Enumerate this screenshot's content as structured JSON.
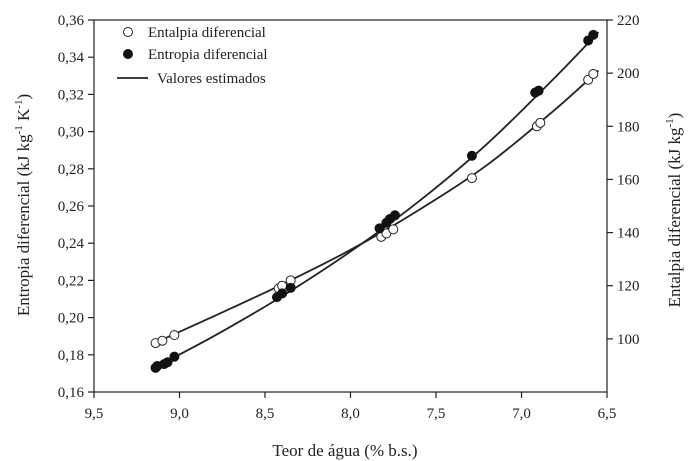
{
  "chart_data": {
    "type": "line",
    "xlabel": "Teor de água (% b.s.)",
    "ylabel_left_main": "Entropia diferencial (kJ kg",
    "ylabel_left_sup1": "-1",
    "ylabel_left_mid": " K",
    "ylabel_left_sup2": "-1",
    "ylabel_left_end": ")",
    "ylabel_right_main": "Entalpia diferencial (kJ kg",
    "ylabel_right_sup": "-1",
    "ylabel_right_end": ")",
    "xlim": [
      9.5,
      6.5
    ],
    "x_reversed": true,
    "ylim_left": [
      0.16,
      0.36
    ],
    "ylim_right": [
      80,
      220
    ],
    "x_ticks": [
      9.5,
      9.0,
      8.5,
      8.0,
      7.5,
      7.0,
      6.5
    ],
    "x_tick_labels": [
      "9,5",
      "9,0",
      "8,5",
      "8,0",
      "7,5",
      "7,0",
      "6,5"
    ],
    "y_left_ticks": [
      0.16,
      0.18,
      0.2,
      0.22,
      0.24,
      0.26,
      0.28,
      0.3,
      0.32,
      0.34,
      0.36
    ],
    "y_left_tick_labels": [
      "0,16",
      "0,18",
      "0,20",
      "0,22",
      "0,24",
      "0,26",
      "0,28",
      "0,30",
      "0,32",
      "0,34",
      "0,36"
    ],
    "y_right_ticks": [
      100,
      120,
      140,
      160,
      180,
      200,
      220
    ],
    "y_right_tick_labels": [
      "100",
      "120",
      "140",
      "160",
      "180",
      "200",
      "220"
    ],
    "legend_position": "top-left",
    "grid": false,
    "legend": {
      "entalpia": "Entalpia diferencial",
      "entropia": "Entropia diferencial",
      "estimados": "Valores estimados"
    },
    "series": [
      {
        "name": "Entalpia diferencial",
        "axis": "right",
        "marker": "open-circle",
        "x": [
          9.14,
          9.1,
          9.03,
          8.42,
          8.4,
          8.35,
          7.82,
          7.79,
          7.75,
          7.29,
          6.91,
          6.89,
          6.61,
          6.58
        ],
        "y": [
          98.4,
          99.3,
          101.4,
          119.0,
          120.0,
          122.0,
          138.4,
          139.7,
          141.2,
          160.5,
          180.0,
          181.3,
          197.5,
          199.7
        ]
      },
      {
        "name": "Entropia diferencial",
        "axis": "left",
        "marker": "filled-circle",
        "x": [
          9.14,
          9.13,
          9.09,
          9.07,
          9.03,
          8.43,
          8.4,
          8.35,
          7.83,
          7.79,
          7.77,
          7.74,
          7.29,
          6.92,
          6.9,
          6.61,
          6.58
        ],
        "y": [
          0.173,
          0.174,
          0.175,
          0.176,
          0.179,
          0.211,
          0.213,
          0.216,
          0.248,
          0.251,
          0.253,
          0.255,
          0.287,
          0.321,
          0.322,
          0.349,
          0.352
        ]
      },
      {
        "name": "Valores estimados",
        "axis": "left",
        "marker": "line",
        "x": [
          9.16,
          8.8,
          8.4,
          8.0,
          7.6,
          7.2,
          6.8,
          6.55
        ],
        "y": [
          0.1725,
          0.19,
          0.2115,
          0.2355,
          0.2625,
          0.2935,
          0.3295,
          0.3535
        ]
      },
      {
        "name": "Valores estimados",
        "axis": "right",
        "marker": "line",
        "x": [
          9.16,
          8.8,
          8.4,
          8.0,
          7.6,
          7.2,
          6.8,
          6.55
        ],
        "y": [
          98.0,
          108.5,
          120.5,
          133.5,
          148.5,
          165.5,
          186.5,
          201.0
        ]
      }
    ]
  }
}
